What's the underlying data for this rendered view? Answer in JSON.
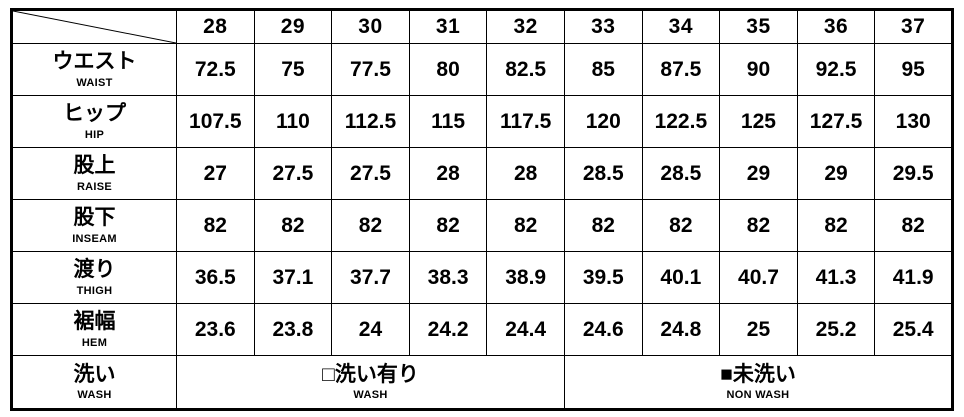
{
  "colors": {
    "border": "#000000",
    "text": "#000000",
    "background": "#ffffff"
  },
  "size_chart": {
    "sizes": [
      "28",
      "29",
      "30",
      "31",
      "32",
      "33",
      "34",
      "35",
      "36",
      "37"
    ],
    "rows": [
      {
        "label_jp": "ウエスト",
        "label_en": "WAIST",
        "values": [
          "72.5",
          "75",
          "77.5",
          "80",
          "82.5",
          "85",
          "87.5",
          "90",
          "92.5",
          "95"
        ]
      },
      {
        "label_jp": "ヒップ",
        "label_en": "HIP",
        "values": [
          "107.5",
          "110",
          "112.5",
          "115",
          "117.5",
          "120",
          "122.5",
          "125",
          "127.5",
          "130"
        ]
      },
      {
        "label_jp": "股上",
        "label_en": "RAISE",
        "values": [
          "27",
          "27.5",
          "27.5",
          "28",
          "28",
          "28.5",
          "28.5",
          "29",
          "29",
          "29.5"
        ]
      },
      {
        "label_jp": "股下",
        "label_en": "INSEAM",
        "values": [
          "82",
          "82",
          "82",
          "82",
          "82",
          "82",
          "82",
          "82",
          "82",
          "82"
        ]
      },
      {
        "label_jp": "渡り",
        "label_en": "THIGH",
        "values": [
          "36.5",
          "37.1",
          "37.7",
          "38.3",
          "38.9",
          "39.5",
          "40.1",
          "40.7",
          "41.3",
          "41.9"
        ]
      },
      {
        "label_jp": "裾幅",
        "label_en": "HEM",
        "values": [
          "23.6",
          "23.8",
          "24",
          "24.2",
          "24.4",
          "24.6",
          "24.8",
          "25",
          "25.2",
          "25.4"
        ]
      }
    ],
    "wash_row": {
      "label_jp": "洗い",
      "label_en": "WASH",
      "groups": [
        {
          "jp": "□洗い有り",
          "en": "WASH",
          "span": 5
        },
        {
          "jp": "■未洗い",
          "en": "NON WASH",
          "span": 5
        }
      ]
    }
  }
}
